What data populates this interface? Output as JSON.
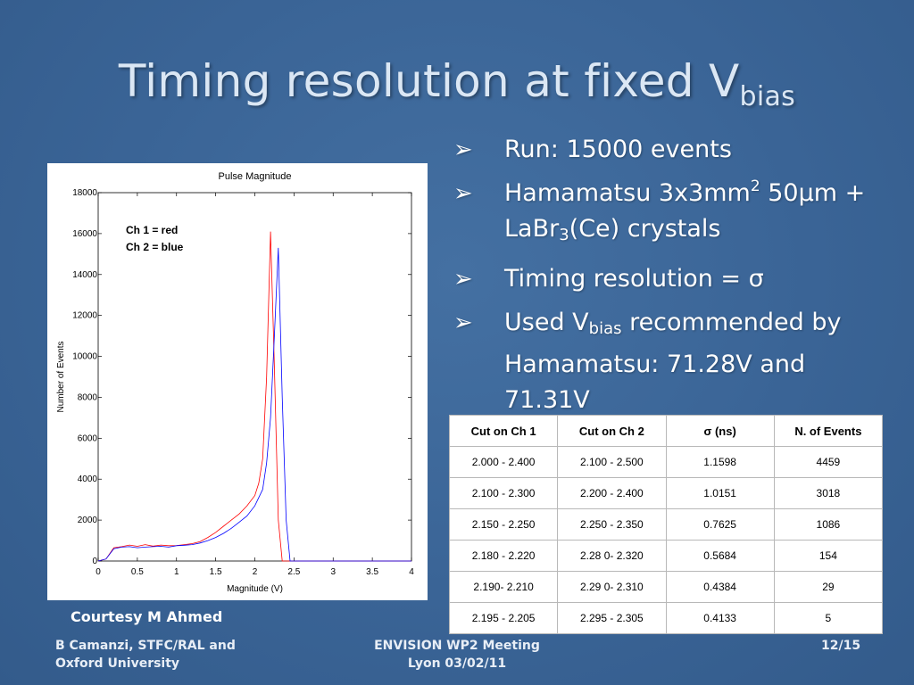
{
  "title": {
    "main": "Timing resolution at fixed V",
    "sub": "bias"
  },
  "bullets": [
    {
      "segments": [
        {
          "t": "Run: 15000 events"
        }
      ]
    },
    {
      "segments": [
        {
          "t": "Hamamatsu 3x3mm"
        },
        {
          "t": "2",
          "sup": true
        },
        {
          "t": " 50μm + LaBr"
        },
        {
          "t": "3",
          "sub": true
        },
        {
          "t": "(Ce) crystals"
        }
      ]
    },
    {
      "segments": [
        {
          "t": "Timing resolution = σ"
        }
      ]
    },
    {
      "segments": [
        {
          "t": "Used V"
        },
        {
          "t": "bias",
          "sub": true
        },
        {
          "t": " recommended by Hamamatsu: 71.28V and 71.31V"
        }
      ]
    }
  ],
  "bullet_marker": "➢",
  "chart_note": [
    "Ch 1 = red",
    "Ch 2 = blue"
  ],
  "courtesy": "Courtesy M Ahmed",
  "table": {
    "headers": [
      "Cut on Ch 1",
      "Cut on Ch 2",
      "σ (ns)",
      "N. of Events"
    ],
    "rows": [
      [
        "2.000 - 2.400",
        "2.100 - 2.500",
        "1.1598",
        "4459"
      ],
      [
        "2.100 - 2.300",
        "2.200 - 2.400",
        "1.0151",
        "3018"
      ],
      [
        "2.150 - 2.250",
        "2.250 - 2.350",
        "0.7625",
        "1086"
      ],
      [
        "2.180 - 2.220",
        "2.28 0- 2.320",
        "0.5684",
        "154"
      ],
      [
        "2.190- 2.210",
        "2.29 0- 2.310",
        "0.4384",
        "29"
      ],
      [
        "2.195 - 2.205",
        "2.295 - 2.305",
        "0.4133",
        "5"
      ]
    ]
  },
  "footer": {
    "left": [
      "B Camanzi, STFC/RAL and",
      "Oxford University"
    ],
    "center": [
      "ENVISION WP2 Meeting",
      "Lyon 03/02/11"
    ],
    "right": "12/15"
  },
  "colors": {
    "background": "#3a6496",
    "ch1": "#ff0000",
    "ch2": "#0000ff"
  },
  "chart_data": {
    "type": "line",
    "title": "Pulse Magnitude",
    "xlabel": "Magnitude (V)",
    "ylabel": "Number of Events",
    "xlim": [
      0,
      4
    ],
    "ylim": [
      0,
      18000
    ],
    "xticks": [
      0,
      0.5,
      1,
      1.5,
      2,
      2.5,
      3,
      3.5,
      4
    ],
    "xtick_labels": [
      "0",
      "0.5",
      "1",
      "1.5",
      "2",
      "2.5",
      "3",
      "3.5",
      "4"
    ],
    "yticks": [
      0,
      2000,
      4000,
      6000,
      8000,
      10000,
      12000,
      14000,
      16000,
      18000
    ],
    "ytick_labels": [
      "0",
      "2000",
      "4000",
      "6000",
      "8000",
      "10000",
      "12000",
      "14000",
      "16000",
      "18000"
    ],
    "grid": false,
    "series": [
      {
        "color": "#ff0000",
        "x": [
          0,
          0.1,
          0.2,
          0.3,
          0.4,
          0.5,
          0.6,
          0.7,
          0.8,
          0.9,
          1.0,
          1.1,
          1.2,
          1.3,
          1.4,
          1.5,
          1.6,
          1.7,
          1.8,
          1.9,
          2.0,
          2.05,
          2.1,
          2.15,
          2.2,
          2.25,
          2.3,
          2.35,
          2.4,
          4.0
        ],
        "y": [
          0,
          100,
          650,
          700,
          780,
          720,
          800,
          730,
          780,
          750,
          760,
          800,
          850,
          950,
          1150,
          1400,
          1700,
          2000,
          2300,
          2700,
          3200,
          3800,
          5000,
          9000,
          16100,
          9500,
          2000,
          0,
          0,
          0
        ]
      },
      {
        "color": "#0000ff",
        "x": [
          0,
          0.1,
          0.2,
          0.3,
          0.4,
          0.5,
          0.6,
          0.7,
          0.8,
          0.9,
          1.0,
          1.1,
          1.2,
          1.3,
          1.4,
          1.5,
          1.6,
          1.7,
          1.8,
          1.9,
          2.0,
          2.1,
          2.15,
          2.2,
          2.25,
          2.3,
          2.35,
          2.4,
          2.45,
          4.0
        ],
        "y": [
          0,
          100,
          600,
          680,
          700,
          650,
          680,
          700,
          720,
          680,
          750,
          770,
          800,
          880,
          1000,
          1150,
          1350,
          1600,
          1900,
          2200,
          2700,
          3500,
          4800,
          7000,
          11000,
          15300,
          8000,
          2000,
          0,
          0
        ]
      }
    ]
  }
}
